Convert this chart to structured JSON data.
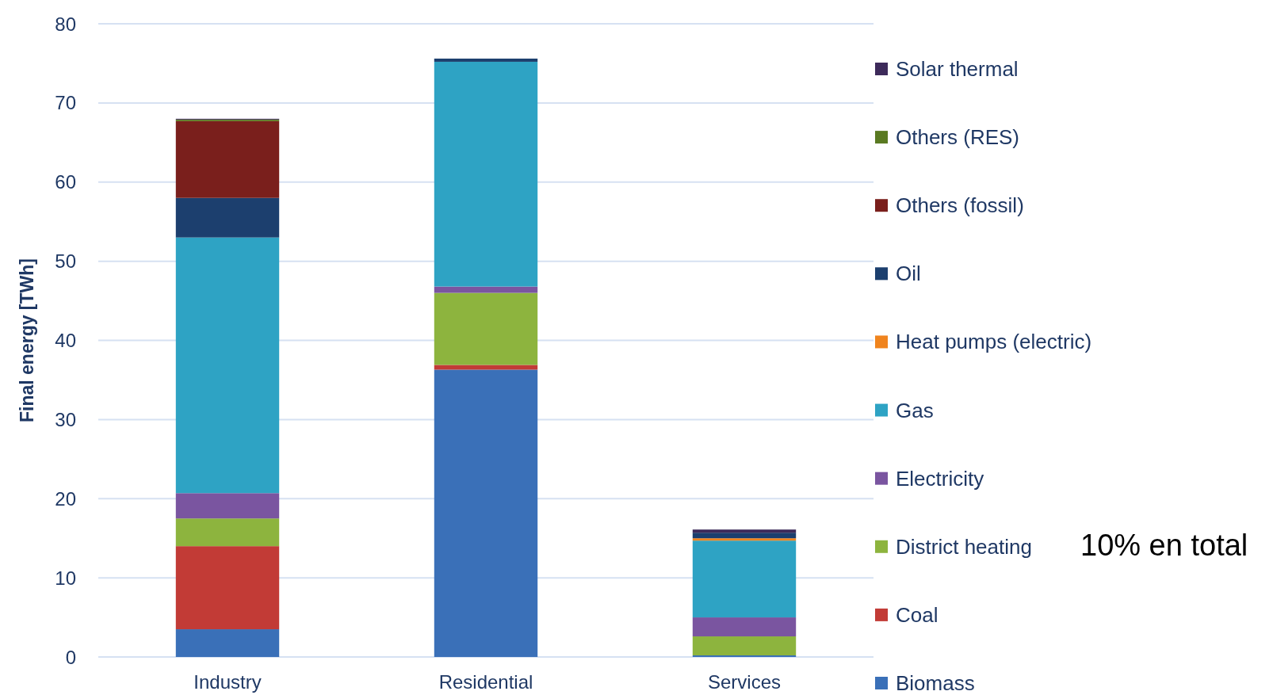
{
  "chart_data": {
    "type": "bar",
    "stacked": true,
    "ylabel": "Final energy [TWh]",
    "categories": [
      "Industry",
      "Residential",
      "Services"
    ],
    "series": [
      {
        "name": "Biomass",
        "color": "#3a70b8",
        "values": [
          3.5,
          36.3,
          0.2
        ]
      },
      {
        "name": "Coal",
        "color": "#c23b36",
        "values": [
          10.5,
          0.6,
          0
        ]
      },
      {
        "name": "District heating",
        "color": "#8db43e",
        "values": [
          3.5,
          9.1,
          2.4
        ]
      },
      {
        "name": "Electricity",
        "color": "#7a55a0",
        "values": [
          3.2,
          0.8,
          2.4
        ]
      },
      {
        "name": "Gas",
        "color": "#2ea3c4",
        "values": [
          32.3,
          28.4,
          9.7
        ]
      },
      {
        "name": "Heat pumps (electric)",
        "color": "#f0841e",
        "values": [
          0,
          0,
          0.3
        ]
      },
      {
        "name": "Oil",
        "color": "#1c3f6e",
        "values": [
          5,
          0.4,
          0.7
        ]
      },
      {
        "name": "Others (fossil)",
        "color": "#7a1f1c",
        "values": [
          9.7,
          0,
          0
        ]
      },
      {
        "name": "Others (RES)",
        "color": "#5a7a22",
        "values": [
          0.2,
          0,
          0
        ]
      },
      {
        "name": "Solar thermal",
        "color": "#3d2a5a",
        "values": [
          0.1,
          0,
          0.4
        ]
      }
    ],
    "ylim": [
      0,
      80
    ],
    "yticks": [
      0,
      10,
      20,
      30,
      40,
      50,
      60,
      70,
      80
    ],
    "grid": "y",
    "legend": "right",
    "annotations": [
      "10% en total"
    ]
  }
}
